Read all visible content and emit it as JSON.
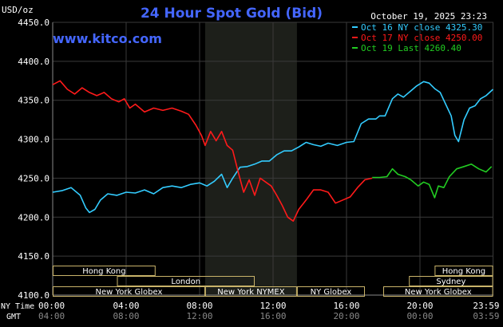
{
  "chart_data": {
    "type": "line",
    "title": "24 Hour Spot Gold (Bid)",
    "site": "www.kitco.com",
    "date_label": "October 19, 2025 23:23",
    "y_unit_label": "USD/oz",
    "ylim": [
      4100,
      4450
    ],
    "y_ticks": [
      "4450.0",
      "4400.0",
      "4350.0",
      "4300.0",
      "4250.0",
      "4200.0",
      "4150.0",
      "4100.0"
    ],
    "y_tick_values": [
      4450,
      4400,
      4350,
      4300,
      4250,
      4200,
      4150,
      4100
    ],
    "xlim_hours": [
      0,
      24
    ],
    "x_ticks_ny": [
      "00:00",
      "04:00",
      "08:00",
      "12:00",
      "16:00",
      "20:00",
      "23:59"
    ],
    "x_ticks_gmt": [
      "04:00",
      "08:00",
      "12:00",
      "16:00",
      "20:00",
      "00:00",
      "03:59"
    ],
    "x_tick_hours": [
      0,
      4,
      8,
      12,
      16,
      20,
      23.98
    ],
    "x_row_label_ny": "NY Time",
    "x_row_label_gmt": "GMT",
    "shaded_region_hours": [
      8.3,
      13.3
    ],
    "colors": {
      "oct16": "#33ccff",
      "oct17": "#ff1a1a",
      "oct19": "#22cc22",
      "title": "#4466ff",
      "grid": "#3a3a3a",
      "session_box": "#c9b36a",
      "shade": "#1d1f1a"
    },
    "legend": [
      {
        "key": "oct16",
        "label": "Oct 16 NY close 4325.30"
      },
      {
        "key": "oct17",
        "label": "Oct 17 NY close 4250.00"
      },
      {
        "key": "oct19",
        "label": "Oct 19 Last 4260.40"
      }
    ],
    "series": [
      {
        "key": "oct16",
        "name": "Oct 16 NY close 4325.30",
        "points": [
          [
            0,
            4232
          ],
          [
            0.5,
            4234
          ],
          [
            1,
            4238
          ],
          [
            1.5,
            4228
          ],
          [
            1.8,
            4212
          ],
          [
            2,
            4206
          ],
          [
            2.3,
            4210
          ],
          [
            2.6,
            4222
          ],
          [
            3,
            4230
          ],
          [
            3.5,
            4228
          ],
          [
            4,
            4232
          ],
          [
            4.5,
            4231
          ],
          [
            5,
            4235
          ],
          [
            5.5,
            4230
          ],
          [
            6,
            4238
          ],
          [
            6.5,
            4240
          ],
          [
            7,
            4238
          ],
          [
            7.5,
            4242
          ],
          [
            8,
            4244
          ],
          [
            8.4,
            4240
          ],
          [
            8.8,
            4246
          ],
          [
            9.2,
            4255
          ],
          [
            9.5,
            4238
          ],
          [
            9.8,
            4250
          ],
          [
            10.2,
            4264
          ],
          [
            10.6,
            4265
          ],
          [
            11,
            4268
          ],
          [
            11.4,
            4272
          ],
          [
            11.8,
            4272
          ],
          [
            12.2,
            4280
          ],
          [
            12.6,
            4285
          ],
          [
            13,
            4285
          ],
          [
            13.4,
            4290
          ],
          [
            13.8,
            4296
          ],
          [
            14.2,
            4293
          ],
          [
            14.6,
            4291
          ],
          [
            15,
            4295
          ],
          [
            15.5,
            4292
          ],
          [
            16,
            4296
          ],
          [
            16.4,
            4297
          ],
          [
            16.8,
            4320
          ],
          [
            17.2,
            4326
          ],
          [
            17.6,
            4326
          ],
          [
            17.8,
            4330
          ],
          [
            18.1,
            4330
          ],
          [
            18.5,
            4352
          ],
          [
            18.8,
            4358
          ],
          [
            19.1,
            4354
          ],
          [
            19.5,
            4362
          ],
          [
            19.8,
            4368
          ],
          [
            20.2,
            4374
          ],
          [
            20.5,
            4372
          ],
          [
            20.8,
            4365
          ],
          [
            21.1,
            4360
          ],
          [
            21.4,
            4345
          ],
          [
            21.7,
            4330
          ],
          [
            21.9,
            4305
          ],
          [
            22.1,
            4297
          ],
          [
            22.4,
            4325
          ],
          [
            22.7,
            4340
          ],
          [
            23.0,
            4343
          ],
          [
            23.3,
            4352
          ],
          [
            23.6,
            4356
          ],
          [
            23.98,
            4364
          ]
        ]
      },
      {
        "key": "oct17",
        "name": "Oct 17 NY close 4250.00",
        "points": [
          [
            0,
            4370
          ],
          [
            0.4,
            4375
          ],
          [
            0.8,
            4364
          ],
          [
            1.2,
            4358
          ],
          [
            1.6,
            4366
          ],
          [
            2,
            4360
          ],
          [
            2.4,
            4356
          ],
          [
            2.8,
            4360
          ],
          [
            3.2,
            4352
          ],
          [
            3.6,
            4348
          ],
          [
            3.9,
            4352
          ],
          [
            4.2,
            4340
          ],
          [
            4.5,
            4345
          ],
          [
            5,
            4335
          ],
          [
            5.5,
            4340
          ],
          [
            6,
            4337
          ],
          [
            6.5,
            4340
          ],
          [
            7,
            4336
          ],
          [
            7.4,
            4332
          ],
          [
            7.8,
            4318
          ],
          [
            8.1,
            4305
          ],
          [
            8.3,
            4292
          ],
          [
            8.6,
            4310
          ],
          [
            8.9,
            4298
          ],
          [
            9.2,
            4310
          ],
          [
            9.5,
            4292
          ],
          [
            9.8,
            4286
          ],
          [
            10.1,
            4258
          ],
          [
            10.4,
            4232
          ],
          [
            10.7,
            4248
          ],
          [
            11,
            4228
          ],
          [
            11.3,
            4250
          ],
          [
            11.6,
            4245
          ],
          [
            11.9,
            4240
          ],
          [
            12.2,
            4228
          ],
          [
            12.5,
            4215
          ],
          [
            12.8,
            4200
          ],
          [
            13.1,
            4195
          ],
          [
            13.4,
            4210
          ],
          [
            13.8,
            4222
          ],
          [
            14.2,
            4235
          ],
          [
            14.6,
            4235
          ],
          [
            15,
            4232
          ],
          [
            15.4,
            4218
          ],
          [
            15.8,
            4222
          ],
          [
            16.2,
            4226
          ],
          [
            16.6,
            4238
          ],
          [
            17,
            4248
          ],
          [
            17.4,
            4250
          ]
        ]
      },
      {
        "key": "oct19",
        "name": "Oct 19 Last 4260.40",
        "points": [
          [
            17.4,
            4251
          ],
          [
            17.8,
            4251
          ],
          [
            18.2,
            4252
          ],
          [
            18.5,
            4262
          ],
          [
            18.8,
            4255
          ],
          [
            19.2,
            4252
          ],
          [
            19.5,
            4248
          ],
          [
            19.9,
            4240
          ],
          [
            20.2,
            4245
          ],
          [
            20.5,
            4242
          ],
          [
            20.8,
            4225
          ],
          [
            21.0,
            4240
          ],
          [
            21.3,
            4238
          ],
          [
            21.6,
            4252
          ],
          [
            22,
            4262
          ],
          [
            22.4,
            4265
          ],
          [
            22.8,
            4268
          ],
          [
            23.2,
            4262
          ],
          [
            23.6,
            4258
          ],
          [
            23.9,
            4265
          ]
        ]
      }
    ],
    "sessions": [
      {
        "label": "Hong Kong",
        "start": 0,
        "end": 5.6,
        "row": 0
      },
      {
        "label": "Hong Kong",
        "start": 20.8,
        "end": 23.98,
        "row": 0
      },
      {
        "label": "London",
        "start": 3.5,
        "end": 11.0,
        "row": 1
      },
      {
        "label": "Sydney",
        "start": 19.4,
        "end": 23.98,
        "row": 1
      },
      {
        "label": "New York Globex",
        "start": 0,
        "end": 8.3,
        "row": 2
      },
      {
        "label": "New York NYMEX",
        "start": 8.3,
        "end": 13.3,
        "row": 2
      },
      {
        "label": "NY Globex",
        "start": 13.3,
        "end": 17.0,
        "row": 2
      },
      {
        "label": "New York Globex",
        "start": 18.0,
        "end": 23.98,
        "row": 2
      }
    ]
  }
}
